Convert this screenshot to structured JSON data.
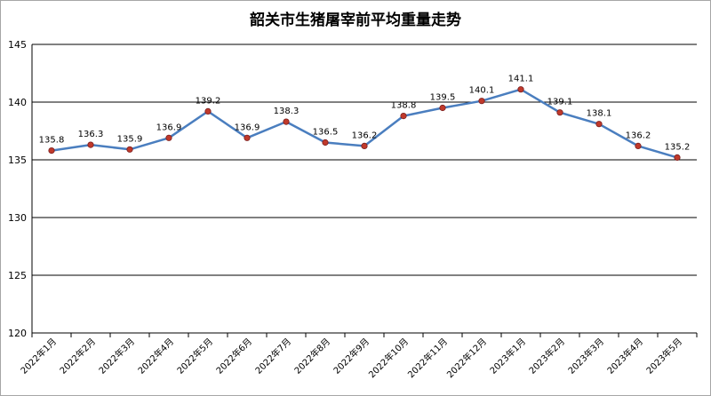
{
  "chart_data": {
    "type": "line",
    "title": "韶关市生猪屠宰前平均重量走势",
    "categories": [
      "2022年1月",
      "2022年2月",
      "2022年3月",
      "2022年4月",
      "2022年5月",
      "2022年6月",
      "2022年7月",
      "2022年8月",
      "2022年9月",
      "2022年10月",
      "2022年11月",
      "2022年12月",
      "2023年1月",
      "2023年2月",
      "2023年3月",
      "2023年4月",
      "2023年5月"
    ],
    "values": [
      135.8,
      136.3,
      135.9,
      136.9,
      139.2,
      136.9,
      138.3,
      136.5,
      136.2,
      138.8,
      139.5,
      140.1,
      141.1,
      139.1,
      138.1,
      136.2,
      135.2
    ],
    "value_labels": [
      "135.8",
      "136.3",
      "135.9",
      "136.9",
      "139.2",
      "136.9",
      "138.3",
      "136.5",
      "136.2",
      "138.8",
      "139.5",
      "140.1",
      "141.1",
      "139.1",
      "138.1",
      "136.2",
      "135.2"
    ],
    "ylim": [
      120,
      145
    ],
    "yticks": [
      120,
      125,
      130,
      135,
      140,
      145
    ],
    "xlabel": "",
    "ylabel": "",
    "grid": true,
    "legend": "none",
    "colors": {
      "line": "#4a7ebf",
      "marker": "#c0392b",
      "grid": "#000000"
    }
  }
}
